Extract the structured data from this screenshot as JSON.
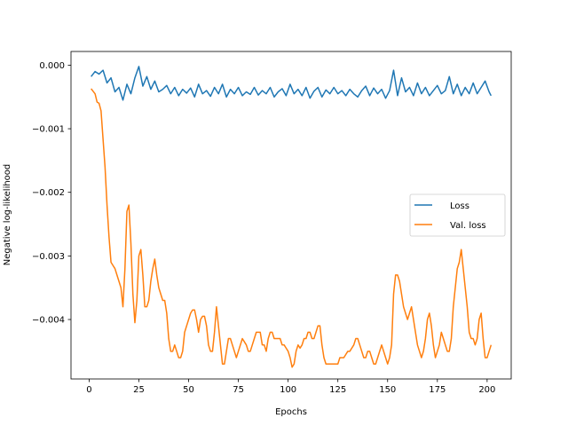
{
  "chart_data": {
    "type": "line",
    "title": "",
    "xlabel": "Epochs",
    "ylabel": "Negative log-likelihood",
    "xlim": [
      -9.1,
      212.1
    ],
    "ylim": [
      -0.004935,
      0.000215
    ],
    "xticks": [
      0,
      25,
      50,
      75,
      100,
      125,
      150,
      175,
      200
    ],
    "xtick_labels": [
      "0",
      "25",
      "50",
      "75",
      "100",
      "125",
      "150",
      "175",
      "200"
    ],
    "yticks": [
      0.0,
      -0.001,
      -0.002,
      -0.003,
      -0.004
    ],
    "ytick_labels": [
      "0.000",
      "−0.001",
      "−0.002",
      "−0.003",
      "−0.004"
    ],
    "grid": false,
    "legend_position": "center-right",
    "series": [
      {
        "name": "Loss",
        "color": "#1f77b4",
        "x": [
          1,
          3,
          5,
          7,
          9,
          11,
          13,
          15,
          17,
          19,
          21,
          23,
          25,
          27,
          29,
          31,
          33,
          35,
          37,
          39,
          41,
          43,
          45,
          47,
          49,
          51,
          53,
          55,
          57,
          59,
          61,
          63,
          65,
          67,
          69,
          71,
          73,
          75,
          77,
          79,
          81,
          83,
          85,
          87,
          89,
          91,
          93,
          95,
          97,
          99,
          101,
          103,
          105,
          107,
          109,
          111,
          113,
          115,
          117,
          119,
          121,
          123,
          125,
          127,
          129,
          131,
          133,
          135,
          137,
          139,
          141,
          143,
          145,
          147,
          149,
          151,
          153,
          155,
          157,
          159,
          161,
          163,
          165,
          167,
          169,
          171,
          173,
          175,
          177,
          179,
          181,
          183,
          185,
          187,
          189,
          191,
          193,
          195,
          197,
          199,
          201,
          202
        ],
        "y": [
          -0.00018,
          -0.0001,
          -0.00014,
          -8e-05,
          -0.00028,
          -0.0002,
          -0.00042,
          -0.00035,
          -0.00055,
          -0.0003,
          -0.00045,
          -0.0002,
          -2e-05,
          -0.00033,
          -0.00018,
          -0.00038,
          -0.00025,
          -0.00042,
          -0.00038,
          -0.00032,
          -0.00045,
          -0.00035,
          -0.00048,
          -0.00038,
          -0.00044,
          -0.00036,
          -0.0005,
          -0.0003,
          -0.00045,
          -0.0004,
          -0.00049,
          -0.00035,
          -0.00045,
          -0.0003,
          -0.0005,
          -0.00038,
          -0.00045,
          -0.00035,
          -0.00048,
          -0.00042,
          -0.00046,
          -0.00035,
          -0.00047,
          -0.0004,
          -0.00045,
          -0.00035,
          -0.0005,
          -0.00042,
          -0.00037,
          -0.00048,
          -0.0003,
          -0.00045,
          -0.00038,
          -0.00048,
          -0.00035,
          -0.00052,
          -0.00041,
          -0.00035,
          -0.0005,
          -0.00039,
          -0.00045,
          -0.00035,
          -0.00045,
          -0.0004,
          -0.00048,
          -0.00038,
          -0.00045,
          -0.0005,
          -0.0004,
          -0.00033,
          -0.00048,
          -0.00036,
          -0.00045,
          -0.00038,
          -0.00052,
          -0.0004,
          -8e-05,
          -0.00048,
          -0.0002,
          -0.00042,
          -0.00035,
          -0.00048,
          -0.00028,
          -0.00045,
          -0.00035,
          -0.00048,
          -0.0004,
          -0.00032,
          -0.00045,
          -0.0004,
          -0.00018,
          -0.00045,
          -0.0003,
          -0.00048,
          -0.00035,
          -0.00045,
          -0.00028,
          -0.00045,
          -0.00035,
          -0.00025,
          -0.00042,
          -0.00048
        ]
      },
      {
        "name": "Val. loss",
        "color": "#ff7f0e",
        "x": [
          1,
          3,
          4,
          5,
          6,
          8,
          9,
          10,
          11,
          12,
          13,
          14,
          15,
          16,
          17,
          18,
          19,
          20,
          21,
          22,
          23,
          24,
          25,
          26,
          27,
          28,
          29,
          30,
          31,
          32,
          33,
          34,
          35,
          36,
          37,
          38,
          39,
          40,
          41,
          42,
          43,
          44,
          45,
          46,
          47,
          48,
          49,
          50,
          51,
          52,
          53,
          54,
          55,
          56,
          57,
          58,
          59,
          60,
          61,
          62,
          63,
          64,
          65,
          66,
          67,
          68,
          69,
          70,
          71,
          72,
          73,
          74,
          75,
          76,
          77,
          78,
          79,
          80,
          81,
          82,
          83,
          84,
          85,
          86,
          87,
          88,
          89,
          90,
          91,
          92,
          93,
          94,
          95,
          96,
          97,
          98,
          99,
          100,
          101,
          102,
          103,
          104,
          105,
          106,
          107,
          108,
          109,
          110,
          111,
          112,
          113,
          114,
          115,
          116,
          117,
          118,
          119,
          120,
          121,
          122,
          123,
          124,
          125,
          126,
          127,
          128,
          129,
          130,
          131,
          132,
          133,
          134,
          135,
          136,
          137,
          138,
          139,
          140,
          141,
          142,
          143,
          144,
          145,
          146,
          147,
          148,
          149,
          150,
          151,
          152,
          153,
          154,
          155,
          156,
          157,
          158,
          159,
          160,
          161,
          162,
          163,
          164,
          165,
          166,
          167,
          168,
          169,
          170,
          171,
          172,
          173,
          174,
          175,
          176,
          177,
          178,
          179,
          180,
          181,
          182,
          183,
          184,
          185,
          186,
          187,
          188,
          189,
          190,
          191,
          192,
          193,
          194,
          195,
          196,
          197,
          198,
          199,
          200,
          201,
          202
        ],
        "y": [
          -0.00037,
          -0.00045,
          -0.00058,
          -0.0006,
          -0.00072,
          -0.0016,
          -0.0022,
          -0.0027,
          -0.0031,
          -0.00315,
          -0.0032,
          -0.0033,
          -0.0034,
          -0.0035,
          -0.0038,
          -0.0032,
          -0.0023,
          -0.0022,
          -0.0028,
          -0.0036,
          -0.00405,
          -0.0037,
          -0.003,
          -0.0029,
          -0.0033,
          -0.0038,
          -0.0038,
          -0.0037,
          -0.0034,
          -0.0032,
          -0.00305,
          -0.0033,
          -0.0035,
          -0.0036,
          -0.0037,
          -0.0037,
          -0.0039,
          -0.0043,
          -0.0045,
          -0.0045,
          -0.0044,
          -0.0045,
          -0.0046,
          -0.0046,
          -0.0045,
          -0.0042,
          -0.0041,
          -0.004,
          -0.0039,
          -0.00385,
          -0.00385,
          -0.004,
          -0.0042,
          -0.004,
          -0.00395,
          -0.00395,
          -0.0041,
          -0.0044,
          -0.0045,
          -0.0045,
          -0.0042,
          -0.0038,
          -0.0041,
          -0.0044,
          -0.0047,
          -0.0047,
          -0.0045,
          -0.0043,
          -0.0043,
          -0.0044,
          -0.0045,
          -0.0046,
          -0.0045,
          -0.0044,
          -0.0043,
          -0.00435,
          -0.0044,
          -0.0045,
          -0.0045,
          -0.0044,
          -0.0043,
          -0.0042,
          -0.0042,
          -0.0042,
          -0.0044,
          -0.0044,
          -0.0045,
          -0.0043,
          -0.0042,
          -0.0042,
          -0.0043,
          -0.0043,
          -0.0043,
          -0.0043,
          -0.0044,
          -0.0044,
          -0.00445,
          -0.0045,
          -0.0046,
          -0.00475,
          -0.0047,
          -0.0045,
          -0.0044,
          -0.00445,
          -0.0044,
          -0.0043,
          -0.0043,
          -0.0042,
          -0.0042,
          -0.0043,
          -0.0043,
          -0.0042,
          -0.0041,
          -0.0041,
          -0.0044,
          -0.0046,
          -0.0047,
          -0.0047,
          -0.0047,
          -0.0047,
          -0.0047,
          -0.0047,
          -0.0047,
          -0.0046,
          -0.0046,
          -0.0046,
          -0.00455,
          -0.0045,
          -0.0045,
          -0.00445,
          -0.0044,
          -0.0043,
          -0.0043,
          -0.0044,
          -0.0045,
          -0.0046,
          -0.0046,
          -0.0045,
          -0.0045,
          -0.0046,
          -0.0047,
          -0.0047,
          -0.0046,
          -0.0045,
          -0.0044,
          -0.0045,
          -0.0046,
          -0.0047,
          -0.0046,
          -0.0044,
          -0.0036,
          -0.0033,
          -0.0033,
          -0.0034,
          -0.0036,
          -0.0038,
          -0.0039,
          -0.004,
          -0.0039,
          -0.0038,
          -0.004,
          -0.0042,
          -0.0044,
          -0.0045,
          -0.0046,
          -0.0045,
          -0.0043,
          -0.004,
          -0.0039,
          -0.0041,
          -0.0044,
          -0.0046,
          -0.0045,
          -0.0044,
          -0.0042,
          -0.0043,
          -0.0044,
          -0.0045,
          -0.0045,
          -0.0043,
          -0.0038,
          -0.0035,
          -0.0032,
          -0.0031,
          -0.0029,
          -0.0032,
          -0.0035,
          -0.0038,
          -0.0042,
          -0.0043,
          -0.0043,
          -0.0044,
          -0.0043,
          -0.004,
          -0.0039,
          -0.0043,
          -0.0046,
          -0.0046,
          -0.0045,
          -0.0044
        ]
      }
    ]
  }
}
